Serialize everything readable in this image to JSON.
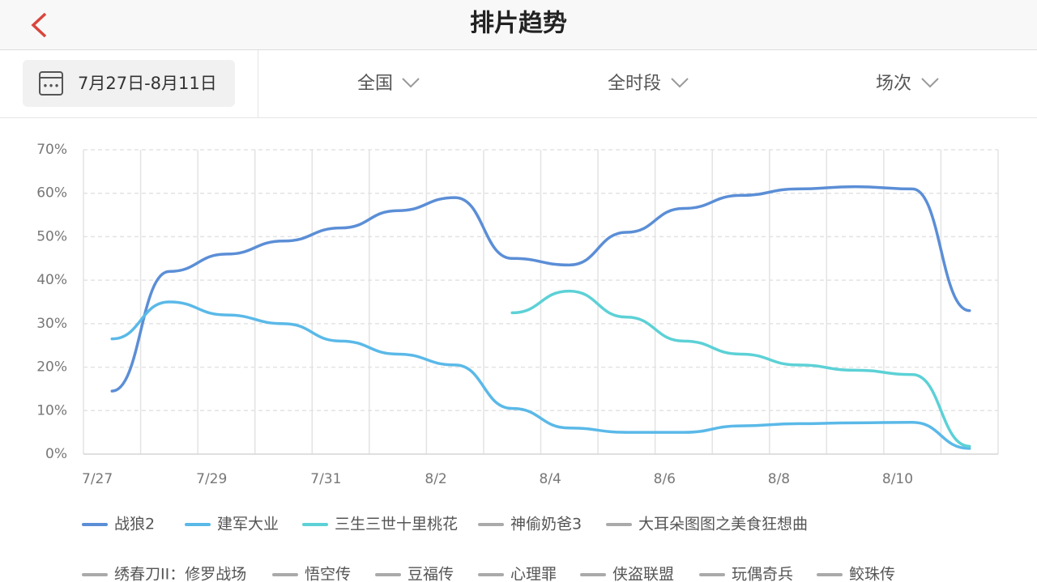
{
  "header": {
    "title": "排片趋势"
  },
  "filters": {
    "date": "7月27日-8月11日",
    "region": "全国",
    "period": "全时段",
    "metric": "场次"
  },
  "chart_data": {
    "type": "line",
    "categories": [
      "7/27",
      null,
      "7/29",
      null,
      "7/31",
      null,
      "8/2",
      null,
      "8/4",
      null,
      "8/6",
      null,
      "8/8",
      null,
      "8/10",
      null
    ],
    "ylim": [
      0,
      70
    ],
    "yticks": [
      {
        "value": 0,
        "label": "0%"
      },
      {
        "value": 10,
        "label": "10%"
      },
      {
        "value": 20,
        "label": "20%"
      },
      {
        "value": 30,
        "label": "30%"
      },
      {
        "value": 40,
        "label": "40%"
      },
      {
        "value": 50,
        "label": "50%"
      },
      {
        "value": 60,
        "label": "60%"
      },
      {
        "value": 70,
        "label": "70%"
      }
    ],
    "grid": true,
    "legend": "bottom",
    "series": [
      {
        "name": "战狼2",
        "color": "#5b8ed6",
        "values": [
          14.5,
          42,
          46,
          49,
          52,
          56,
          59,
          45,
          43.5,
          51,
          56.5,
          59.5,
          61,
          61.5,
          61,
          33
        ]
      },
      {
        "name": "建军大业",
        "color": "#5ab9e8",
        "values": [
          26.5,
          35,
          32,
          30,
          26,
          23,
          20.5,
          10.5,
          6,
          5,
          5,
          6.5,
          7,
          7.2,
          7.3,
          1.3
        ]
      },
      {
        "name": "三生三世十里桃花",
        "color": "#5cd1d6",
        "values": [
          null,
          null,
          null,
          null,
          null,
          null,
          null,
          32.5,
          37.5,
          31.5,
          26,
          23,
          20.5,
          19.3,
          18.3,
          1.8
        ]
      },
      {
        "name": "神偷奶爸3",
        "color": "#aaaaaa",
        "values": [
          null,
          null,
          null,
          null,
          null,
          null,
          null,
          null,
          null,
          null,
          null,
          null,
          null,
          null,
          null,
          null
        ]
      },
      {
        "name": "大耳朵图图之美食狂想曲",
        "color": "#aaaaaa",
        "values": [
          null,
          null,
          null,
          null,
          null,
          null,
          null,
          null,
          null,
          null,
          null,
          null,
          null,
          null,
          null,
          null
        ]
      },
      {
        "name": "绣春刀II：修罗战场",
        "color": "#aaaaaa",
        "values": [
          null,
          null,
          null,
          null,
          null,
          null,
          null,
          null,
          null,
          null,
          null,
          null,
          null,
          null,
          null,
          null
        ]
      },
      {
        "name": "悟空传",
        "color": "#aaaaaa",
        "values": [
          null,
          null,
          null,
          null,
          null,
          null,
          null,
          null,
          null,
          null,
          null,
          null,
          null,
          null,
          null,
          null
        ]
      },
      {
        "name": "豆福传",
        "color": "#aaaaaa",
        "values": [
          null,
          null,
          null,
          null,
          null,
          null,
          null,
          null,
          null,
          null,
          null,
          null,
          null,
          null,
          null,
          null
        ]
      },
      {
        "name": "心理罪",
        "color": "#aaaaaa",
        "values": [
          null,
          null,
          null,
          null,
          null,
          null,
          null,
          null,
          null,
          null,
          null,
          null,
          null,
          null,
          null,
          null
        ]
      },
      {
        "name": "侠盗联盟",
        "color": "#aaaaaa",
        "values": [
          null,
          null,
          null,
          null,
          null,
          null,
          null,
          null,
          null,
          null,
          null,
          null,
          null,
          null,
          null,
          null
        ]
      },
      {
        "name": "玩偶奇兵",
        "color": "#aaaaaa",
        "values": [
          null,
          null,
          null,
          null,
          null,
          null,
          null,
          null,
          null,
          null,
          null,
          null,
          null,
          null,
          null,
          null
        ]
      },
      {
        "name": "鲛珠传",
        "color": "#aaaaaa",
        "values": [
          null,
          null,
          null,
          null,
          null,
          null,
          null,
          null,
          null,
          null,
          null,
          null,
          null,
          null,
          null,
          null
        ]
      }
    ]
  }
}
